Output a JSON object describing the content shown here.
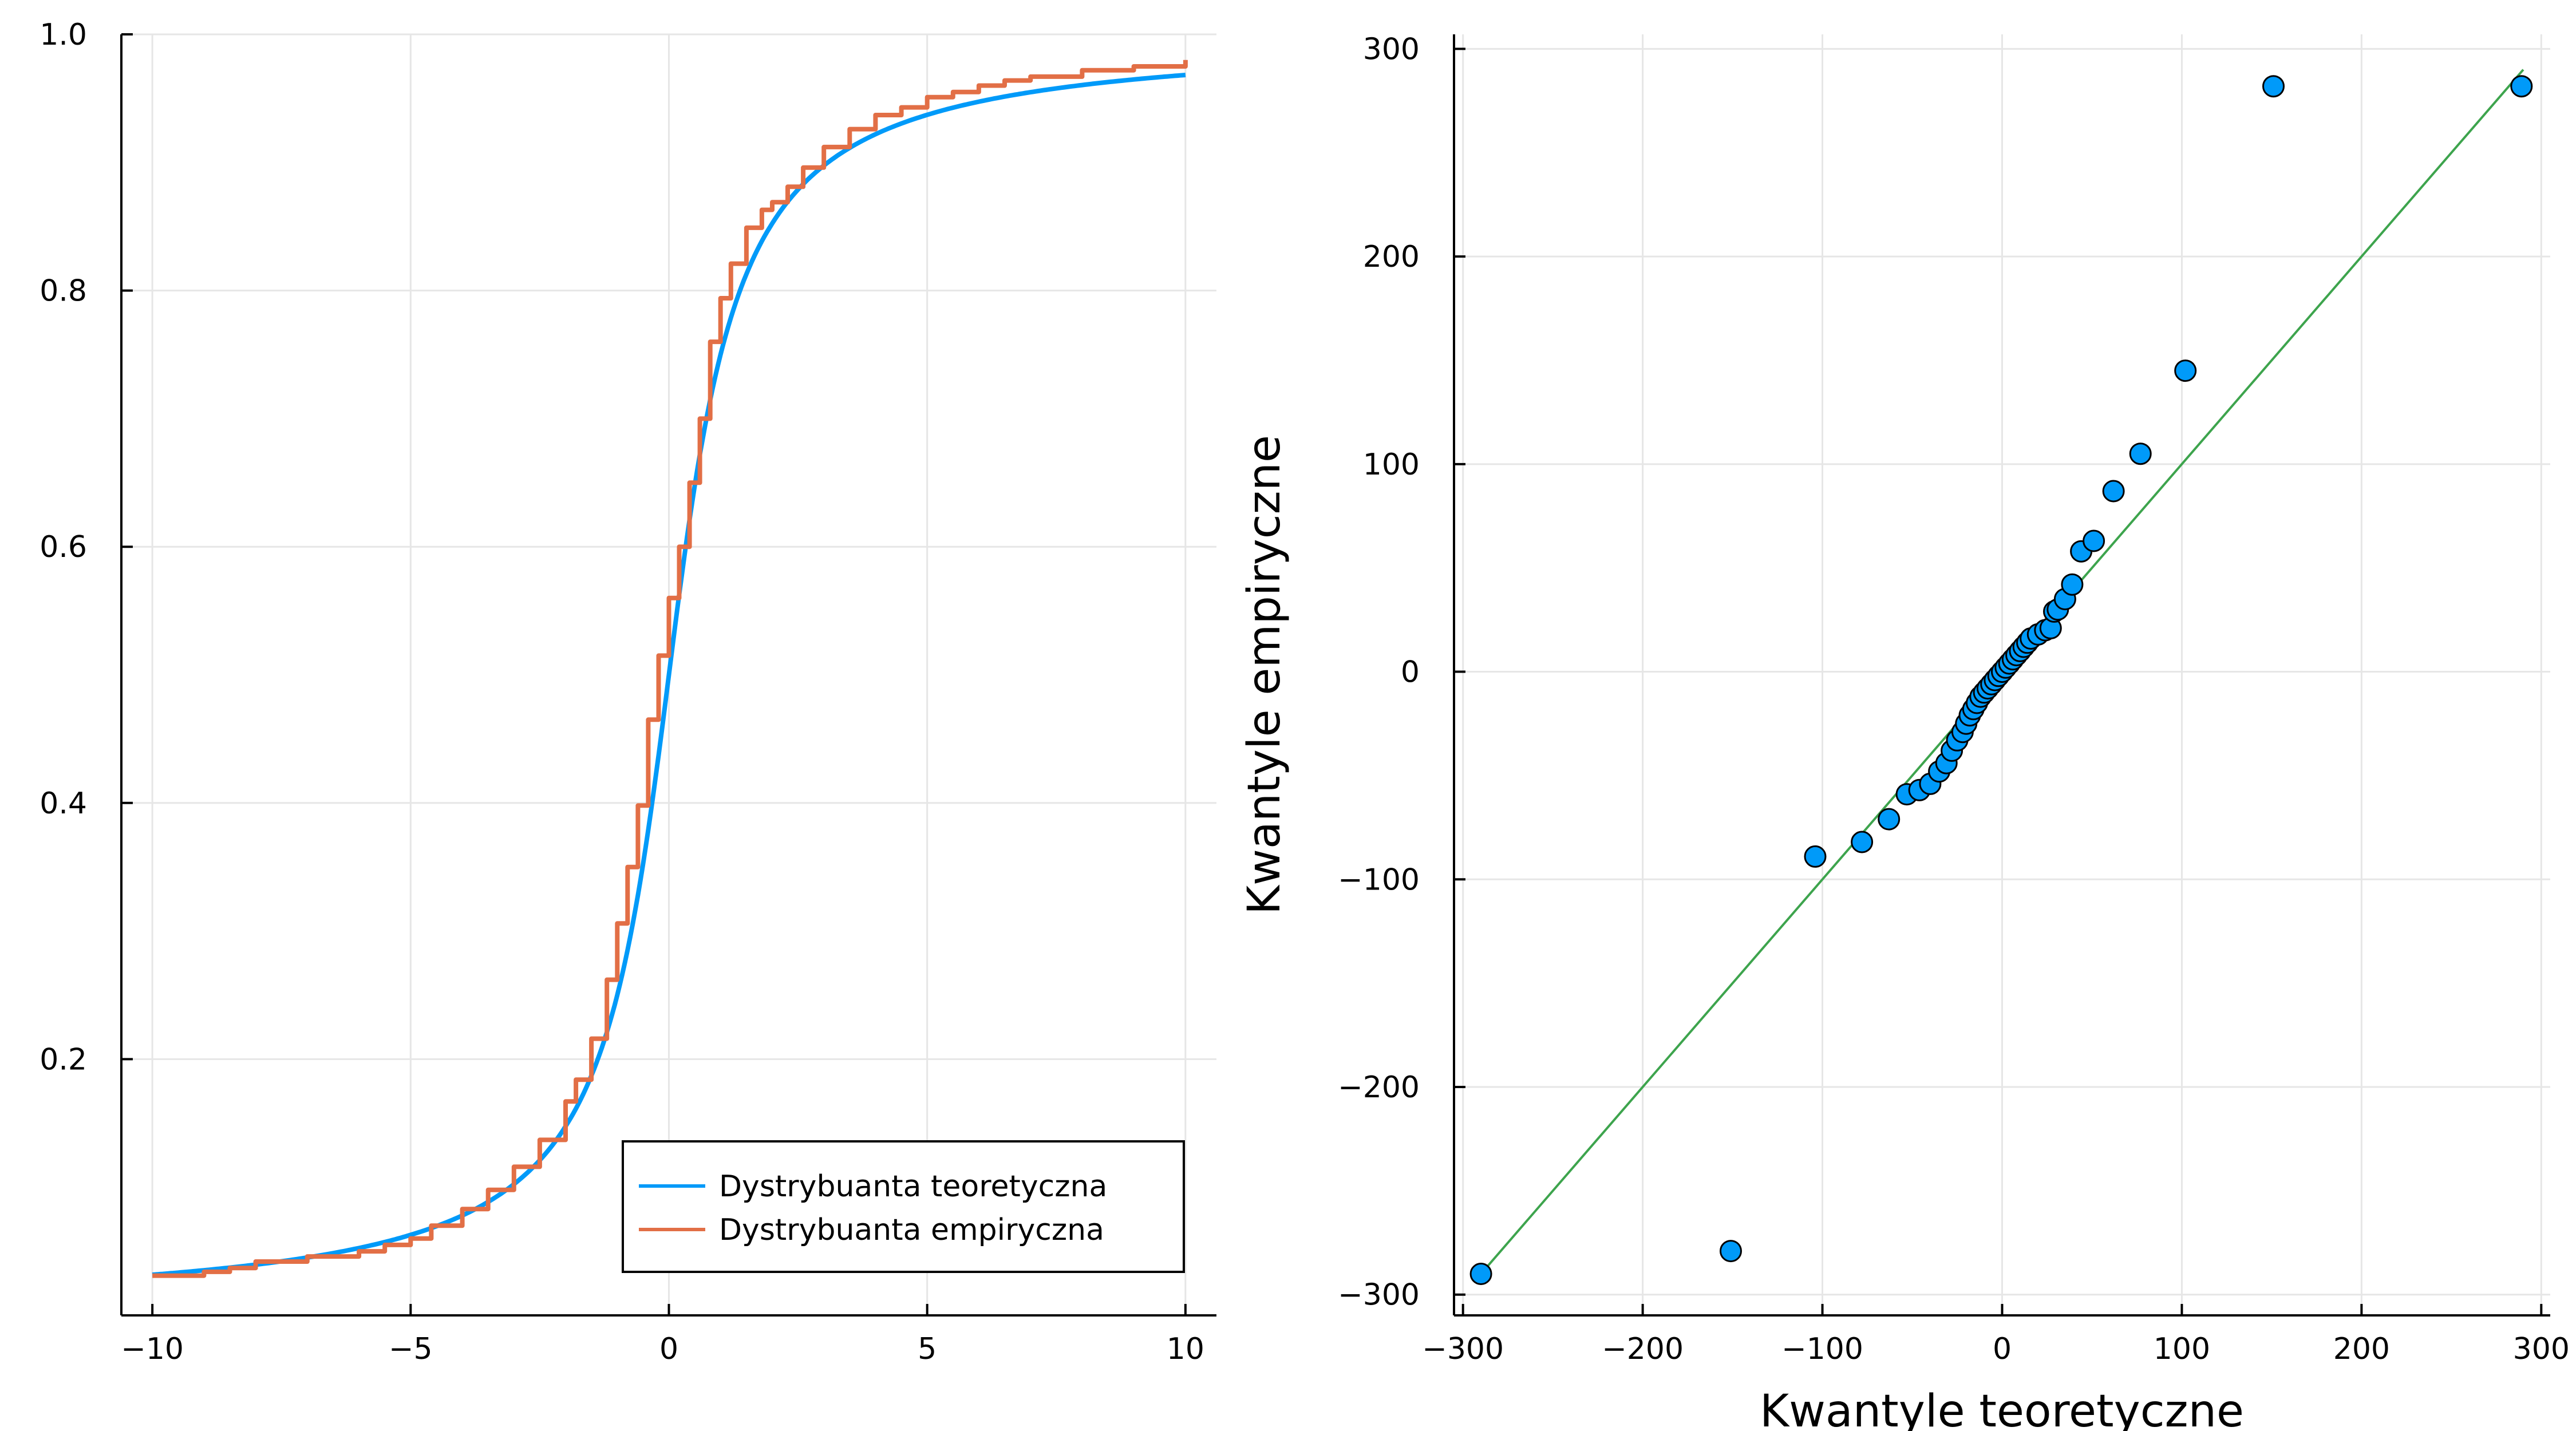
{
  "chart_data": [
    {
      "type": "line",
      "title": "",
      "xlabel": "",
      "ylabel": "",
      "xlim": [
        -10.6,
        10.6
      ],
      "ylim": [
        0.0,
        1.0
      ],
      "xticks": [
        -10,
        -5,
        0,
        5,
        10
      ],
      "xtick_labels": [
        "−10",
        "−5",
        "0",
        "5",
        "10"
      ],
      "yticks": [
        0.2,
        0.4,
        0.6,
        0.8,
        1.0
      ],
      "ytick_labels": [
        "0.2",
        "0.4",
        "0.6",
        "0.8",
        "1.0"
      ],
      "grid": true,
      "legend_position": "bottom-right",
      "series": [
        {
          "name": "Dystrybuanta teoretyczna",
          "color": "#009af9",
          "kind": "cauchy_cdf",
          "location": 0,
          "scale": 1,
          "x_range": [
            -10,
            10
          ]
        },
        {
          "name": "Dystrybuanta empiryczna",
          "color": "#e26f46",
          "kind": "points",
          "x": [
            -10,
            -9,
            -8.5,
            -8,
            -7,
            -6,
            -5.5,
            -5,
            -4.6,
            -4,
            -3.5,
            -3,
            -2.5,
            -2,
            -1.8,
            -1.5,
            -1.2,
            -1,
            -0.8,
            -0.6,
            -0.4,
            -0.2,
            0,
            0.2,
            0.4,
            0.6,
            0.8,
            1,
            1.2,
            1.5,
            1.8,
            2,
            2.3,
            2.6,
            3,
            3.5,
            4,
            4.5,
            5,
            5.5,
            6,
            6.5,
            7,
            8,
            9,
            10
          ],
          "y": [
            0.031,
            0.034,
            0.037,
            0.042,
            0.046,
            0.05,
            0.055,
            0.06,
            0.07,
            0.083,
            0.098,
            0.116,
            0.137,
            0.167,
            0.184,
            0.216,
            0.262,
            0.306,
            0.35,
            0.398,
            0.465,
            0.515,
            0.56,
            0.6,
            0.65,
            0.7,
            0.76,
            0.794,
            0.821,
            0.849,
            0.863,
            0.869,
            0.881,
            0.896,
            0.912,
            0.926,
            0.937,
            0.943,
            0.951,
            0.955,
            0.96,
            0.964,
            0.967,
            0.972,
            0.975,
            0.98
          ]
        }
      ]
    },
    {
      "type": "scatter",
      "title": "",
      "xlabel": "Kwantyle teoretyczne",
      "ylabel": "Kwantyle empiryczne",
      "xlim": [
        -305,
        305
      ],
      "ylim": [
        -310,
        307
      ],
      "xticks": [
        -300,
        -200,
        -100,
        0,
        100,
        200,
        300
      ],
      "xtick_labels": [
        "−300",
        "−200",
        "−100",
        "0",
        "100",
        "200",
        "300"
      ],
      "yticks": [
        -300,
        -200,
        -100,
        0,
        100,
        200,
        300
      ],
      "ytick_labels": [
        "−300",
        "−200",
        "−100",
        "0",
        "100",
        "200",
        "300"
      ],
      "grid": true,
      "reference_line": {
        "color": "#3da44d",
        "x": [
          -290,
          290
        ],
        "y": [
          -290,
          290
        ]
      },
      "series": [
        {
          "name": "quantiles",
          "color": "#009af9",
          "x": [
            -290,
            -151,
            -104,
            -78,
            -63,
            -53,
            -46,
            -40,
            -35,
            -31,
            -28,
            -25,
            -22,
            -20,
            -18,
            -16,
            -14,
            -12,
            -10,
            -8,
            -6,
            -4,
            -2,
            0,
            2,
            4,
            6,
            8,
            10,
            12,
            14,
            16,
            20,
            24,
            27,
            29,
            31,
            35,
            39,
            44,
            51,
            62,
            77,
            102,
            151,
            289
          ],
          "y": [
            -290,
            -279,
            -89,
            -82,
            -71,
            -59,
            -57,
            -54,
            -48,
            -44,
            -38,
            -33,
            -29,
            -25,
            -21,
            -18,
            -15,
            -12,
            -10,
            -8,
            -6,
            -4,
            -2,
            0,
            2,
            4,
            6,
            8,
            10,
            12,
            14,
            16,
            18,
            20,
            21,
            29,
            30,
            35,
            42,
            58,
            63,
            87,
            105,
            145,
            282,
            282
          ]
        }
      ]
    }
  ],
  "legend": {
    "entries": [
      "Dystrybuanta teoretyczna",
      "Dystrybuanta empiryczna"
    ]
  }
}
